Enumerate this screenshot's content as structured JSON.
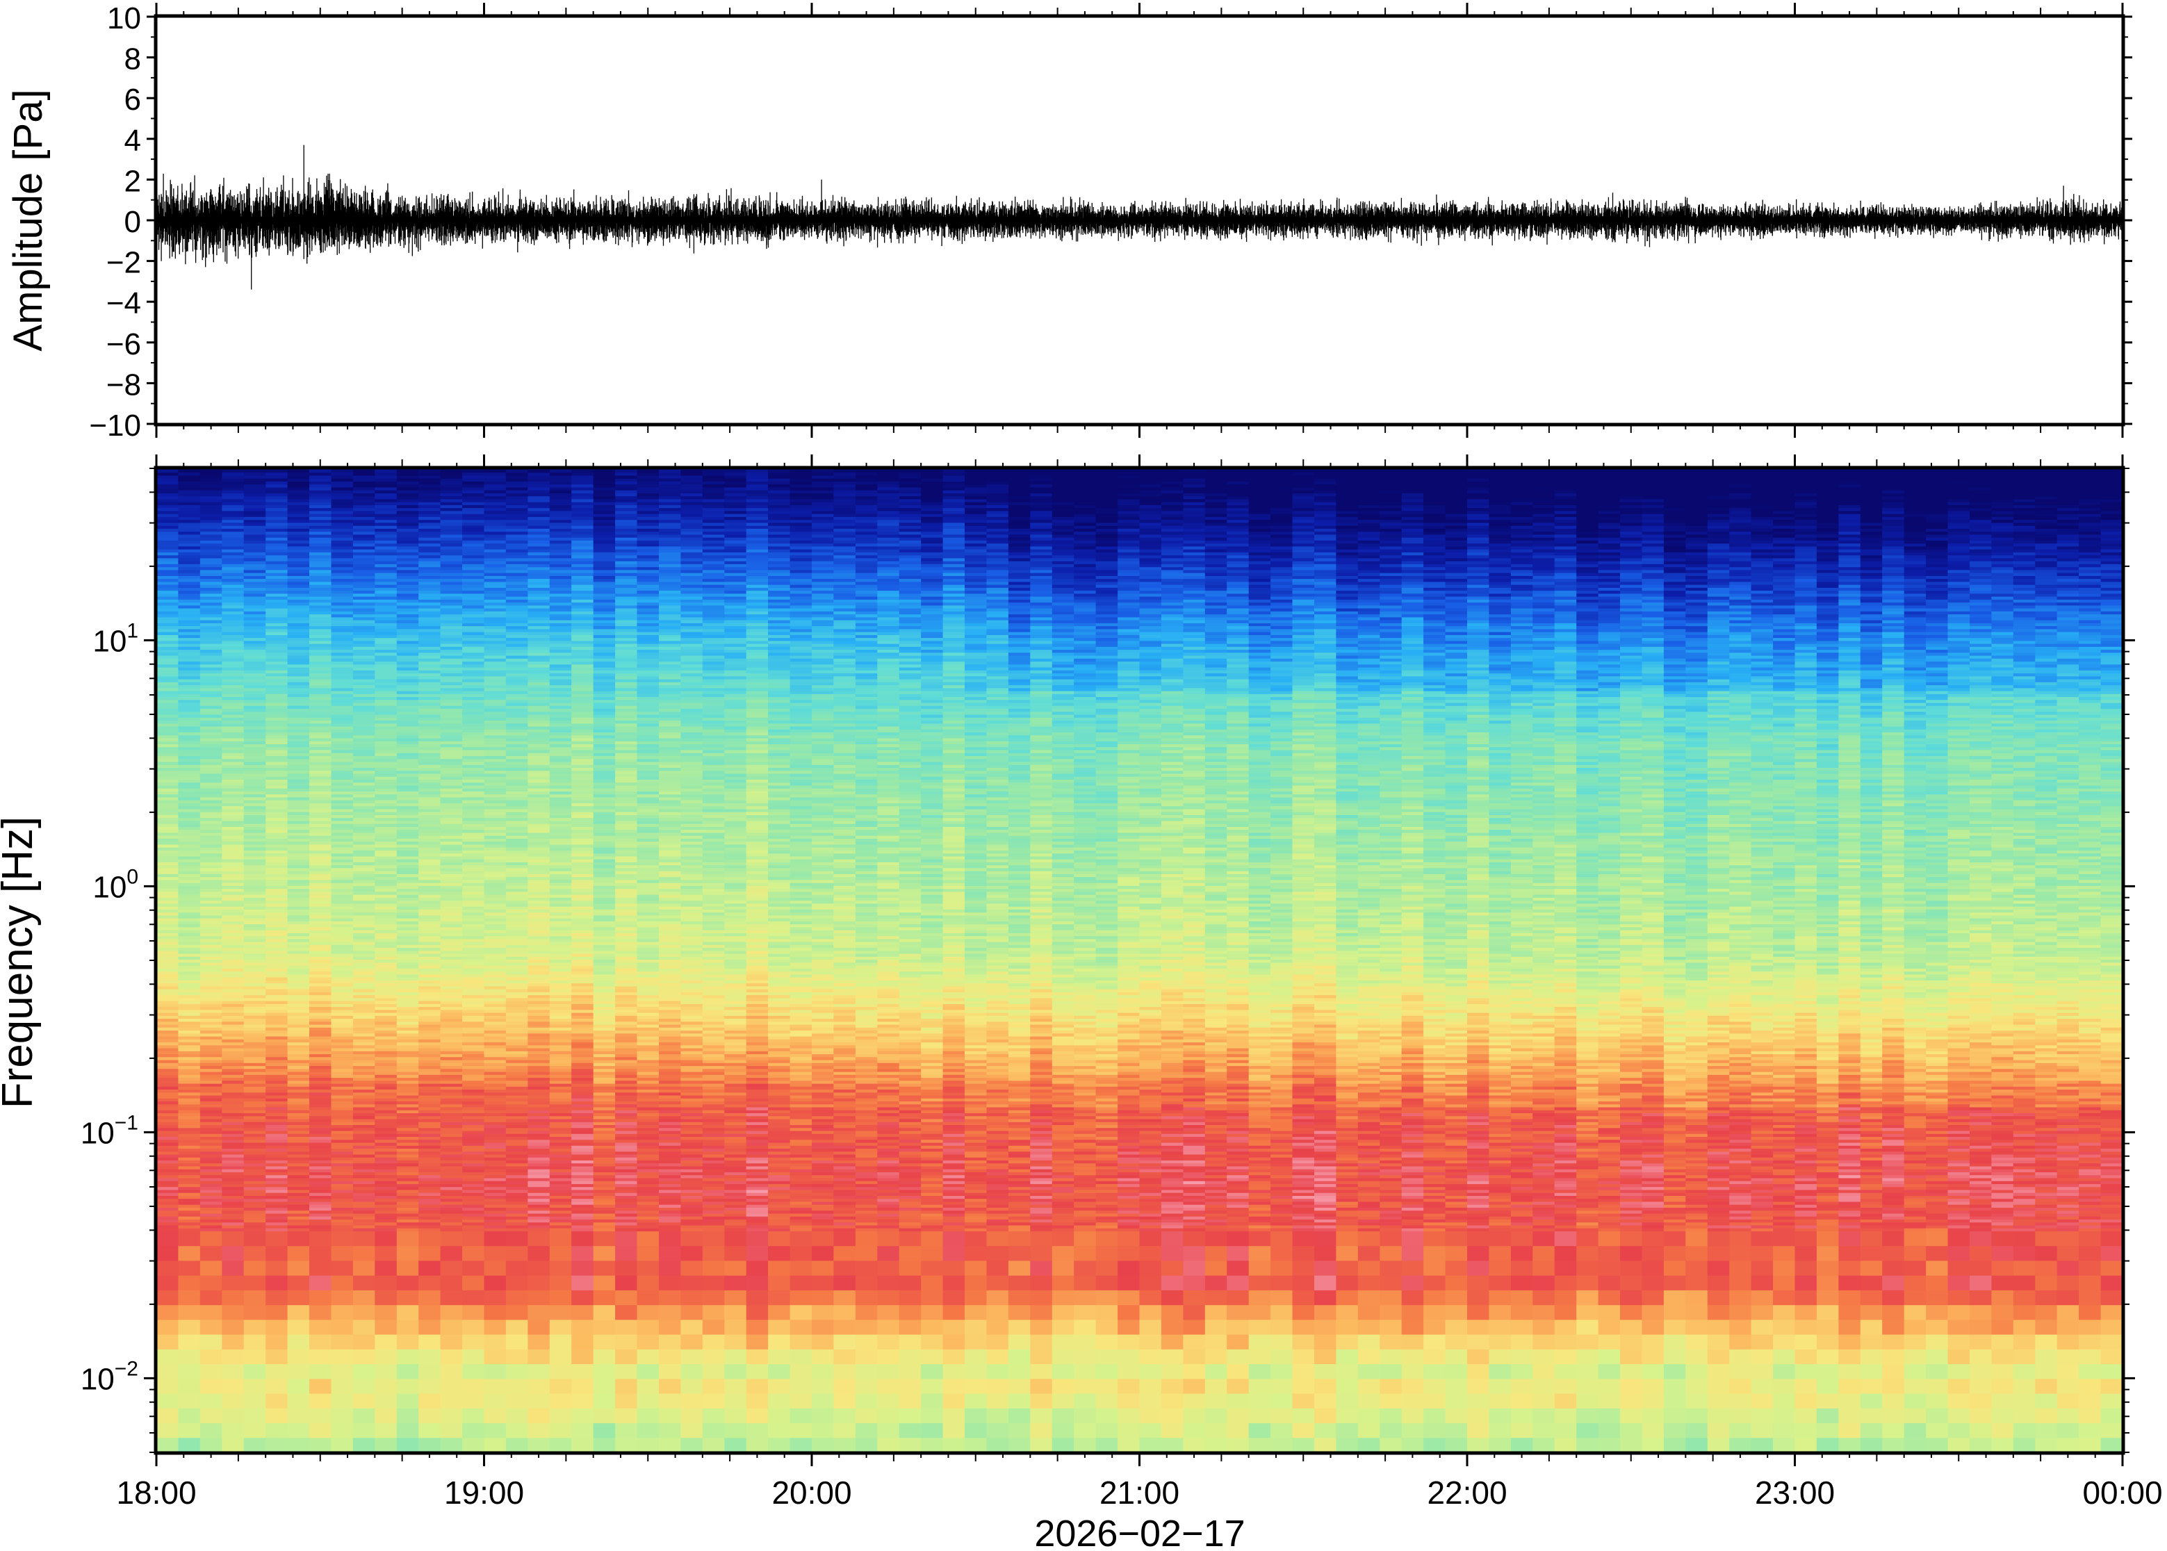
{
  "chart_data": [
    {
      "type": "line",
      "panel": "waveform",
      "ylabel": "Amplitude [Pa]",
      "ylim": [
        -10,
        10
      ],
      "yticks": [
        -10,
        -8,
        -6,
        -4,
        -2,
        0,
        2,
        4,
        6,
        8,
        10
      ],
      "ytick_labels": [
        "−10",
        "−8",
        "−6",
        "−4",
        "−2",
        "0",
        "2",
        "4",
        "6",
        "8",
        "10"
      ],
      "xlim": [
        "18:00",
        "00:00"
      ],
      "series": [
        {
          "envelope_time_hours": [
            0.0,
            0.25,
            0.5,
            0.62,
            0.75,
            1.0,
            1.5,
            2.0,
            2.5,
            3.0,
            3.5,
            4.0,
            4.5,
            5.0,
            5.5,
            5.83,
            6.0
          ],
          "envelope_amplitude_pa": [
            1.6,
            1.5,
            1.7,
            1.6,
            1.1,
            1.0,
            1.0,
            0.9,
            0.8,
            0.7,
            0.75,
            0.8,
            0.8,
            0.65,
            0.55,
            0.9,
            0.7
          ],
          "peaks": [
            {
              "time_hours": 0.45,
              "value_pa": 3.7
            },
            {
              "time_hours": 0.29,
              "value_pa": -3.4
            },
            {
              "time_hours": 0.15,
              "value_pa": -2.3
            },
            {
              "time_hours": 2.03,
              "value_pa": 2.0
            },
            {
              "time_hours": 5.82,
              "value_pa": 1.7
            }
          ]
        }
      ]
    },
    {
      "type": "heatmap",
      "panel": "spectrogram",
      "ylabel": "Frequency [Hz]",
      "yscale": "log",
      "ylim": [
        0.005,
        50
      ],
      "yticks": [
        {
          "value": 10,
          "base": "10",
          "exp": "1"
        },
        {
          "value": 1,
          "base": "10",
          "exp": "0"
        },
        {
          "value": 0.1,
          "base": "10",
          "exp": "−1"
        },
        {
          "value": 0.01,
          "base": "10",
          "exp": "−2"
        }
      ],
      "xlabel": "2026−02−17",
      "xticks": [
        "18:00",
        "19:00",
        "20:00",
        "21:00",
        "22:00",
        "23:00",
        "00:00"
      ],
      "colormap": "rainbow (dark blue = low power, red/pink = high power)",
      "power_peak_band_hz": [
        0.03,
        0.2
      ],
      "colors": {
        "low": "#0b0f7c",
        "mid": "#d8f28a",
        "high": "#e8414b",
        "peak": "#f79aa6"
      }
    }
  ]
}
